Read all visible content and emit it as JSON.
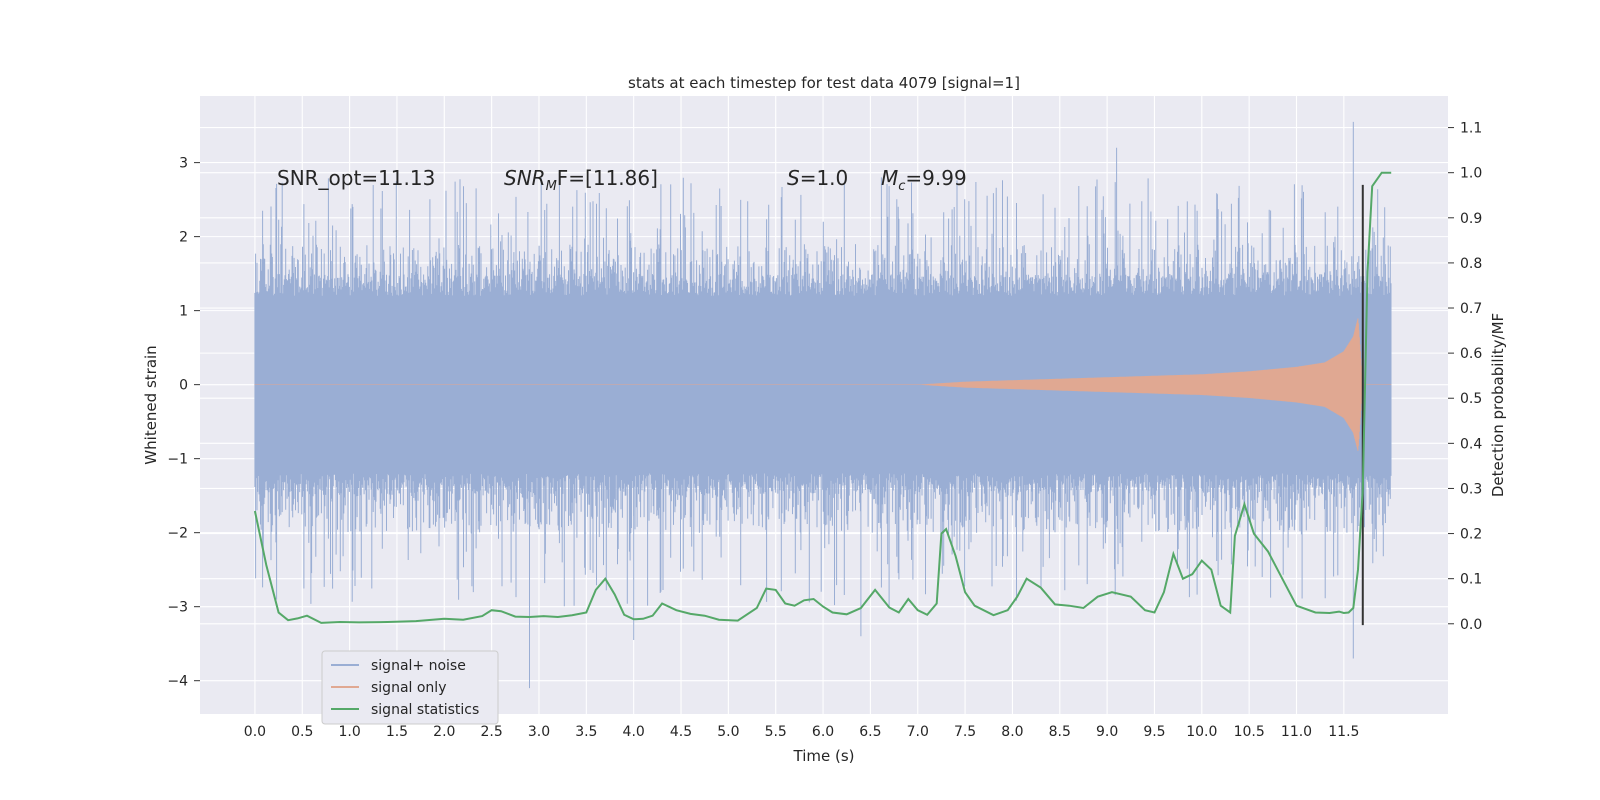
{
  "chart_data": {
    "type": "line",
    "title": "stats at each timestep for test data 4079 [signal=1]",
    "xlabel": "Time (s)",
    "ylabel": "Whitened strain",
    "y2label": "Detection probability/MF",
    "xlim": [
      -0.58,
      12.6
    ],
    "ylim": [
      -4.45,
      3.9
    ],
    "y2lim": [
      -0.2,
      1.17
    ],
    "xticks": [
      "0.0",
      "0.5",
      "1.0",
      "1.5",
      "2.0",
      "2.5",
      "3.0",
      "3.5",
      "4.0",
      "4.5",
      "5.0",
      "5.5",
      "6.0",
      "6.5",
      "7.0",
      "7.5",
      "8.0",
      "8.5",
      "9.0",
      "9.5",
      "10.0",
      "10.5",
      "11.0",
      "11.5"
    ],
    "yticks": [
      "3",
      "2",
      "1",
      "0",
      "−1",
      "−2",
      "−3",
      "−4"
    ],
    "y2ticks": [
      "1.1",
      "1.0",
      "0.9",
      "0.8",
      "0.7",
      "0.6",
      "0.5",
      "0.4",
      "0.3",
      "0.2",
      "0.1",
      "0.0"
    ],
    "grid": true,
    "legend_position": "lower-left",
    "annotations": {
      "snr_opt": "SNR_opt=11.13",
      "snr_mf_label": "SNR",
      "snr_mf_sub": "M",
      "snr_mf_value": "F=[11.86]",
      "s_label": "S",
      "s_value": "=1.0",
      "mc_label": "M",
      "mc_sub": "c",
      "mc_value": "=9.99"
    },
    "colors": {
      "plot_bg": "#eaeaf2",
      "grid": "#ffffff",
      "noise": "#9aaed4",
      "signal": "#e0a892",
      "stats": "#55a868",
      "marker": "#333333"
    },
    "series": [
      {
        "name": "signal+ noise",
        "kind": "noise_band",
        "t_start": 0.0,
        "t_end": 12.0,
        "core_range": [
          -1.2,
          1.2
        ],
        "typical_peaks": [
          1.4,
          2.4
        ],
        "typical_troughs": [
          -1.5,
          -2.6
        ],
        "notable_extremes": [
          {
            "t": 2.9,
            "y": -4.1
          },
          {
            "t": 4.0,
            "y": -3.45
          },
          {
            "t": 6.4,
            "y": -3.4
          },
          {
            "t": 9.1,
            "y": 3.2
          },
          {
            "t": 11.6,
            "y": 3.55
          },
          {
            "t": 11.6,
            "y": -3.7
          }
        ]
      },
      {
        "name": "signal only",
        "kind": "chirp_envelope",
        "x": [
          0.0,
          7.0,
          7.5,
          8.0,
          8.5,
          9.0,
          9.5,
          10.0,
          10.5,
          11.0,
          11.3,
          11.5,
          11.6,
          11.65,
          11.7,
          12.0
        ],
        "amplitude": [
          0.0,
          0.0,
          0.04,
          0.06,
          0.08,
          0.1,
          0.12,
          0.14,
          0.18,
          0.24,
          0.3,
          0.45,
          0.65,
          0.9,
          0.0,
          0.0
        ]
      },
      {
        "name": "signal statistics",
        "kind": "line",
        "axis": "right",
        "x": [
          0.0,
          0.12,
          0.25,
          0.35,
          0.45,
          0.55,
          0.7,
          0.9,
          1.1,
          1.4,
          1.7,
          2.0,
          2.2,
          2.4,
          2.5,
          2.6,
          2.75,
          2.9,
          3.05,
          3.2,
          3.35,
          3.5,
          3.6,
          3.7,
          3.8,
          3.9,
          4.0,
          4.1,
          4.2,
          4.3,
          4.45,
          4.6,
          4.75,
          4.9,
          5.1,
          5.3,
          5.4,
          5.5,
          5.6,
          5.7,
          5.8,
          5.9,
          6.0,
          6.1,
          6.25,
          6.4,
          6.55,
          6.7,
          6.8,
          6.9,
          7.0,
          7.1,
          7.2,
          7.25,
          7.3,
          7.4,
          7.5,
          7.6,
          7.8,
          7.95,
          8.05,
          8.15,
          8.3,
          8.45,
          8.6,
          8.75,
          8.9,
          9.05,
          9.25,
          9.4,
          9.5,
          9.6,
          9.7,
          9.8,
          9.9,
          10.0,
          10.1,
          10.2,
          10.3,
          10.35,
          10.45,
          10.55,
          10.7,
          10.85,
          11.0,
          11.2,
          11.35,
          11.45,
          11.5,
          11.55,
          11.6,
          11.65,
          11.7,
          11.75,
          11.8,
          11.9,
          12.0
        ],
        "values": [
          0.25,
          0.13,
          0.025,
          0.008,
          0.012,
          0.018,
          0.002,
          0.004,
          0.003,
          0.004,
          0.006,
          0.011,
          0.009,
          0.017,
          0.03,
          0.028,
          0.016,
          0.015,
          0.017,
          0.015,
          0.019,
          0.025,
          0.075,
          0.1,
          0.065,
          0.02,
          0.01,
          0.011,
          0.018,
          0.045,
          0.03,
          0.022,
          0.018,
          0.009,
          0.007,
          0.035,
          0.078,
          0.075,
          0.045,
          0.04,
          0.052,
          0.055,
          0.038,
          0.025,
          0.021,
          0.035,
          0.075,
          0.036,
          0.025,
          0.055,
          0.03,
          0.02,
          0.045,
          0.2,
          0.21,
          0.15,
          0.07,
          0.04,
          0.019,
          0.03,
          0.06,
          0.1,
          0.08,
          0.043,
          0.04,
          0.035,
          0.06,
          0.07,
          0.06,
          0.03,
          0.025,
          0.07,
          0.155,
          0.1,
          0.11,
          0.14,
          0.12,
          0.04,
          0.025,
          0.195,
          0.265,
          0.2,
          0.16,
          0.1,
          0.04,
          0.025,
          0.024,
          0.027,
          0.024,
          0.025,
          0.035,
          0.12,
          0.3,
          0.78,
          0.97,
          1.0,
          1.0
        ]
      }
    ],
    "marker_line": {
      "t": 11.7,
      "y_from": -3.25,
      "y_to": 2.7
    }
  }
}
